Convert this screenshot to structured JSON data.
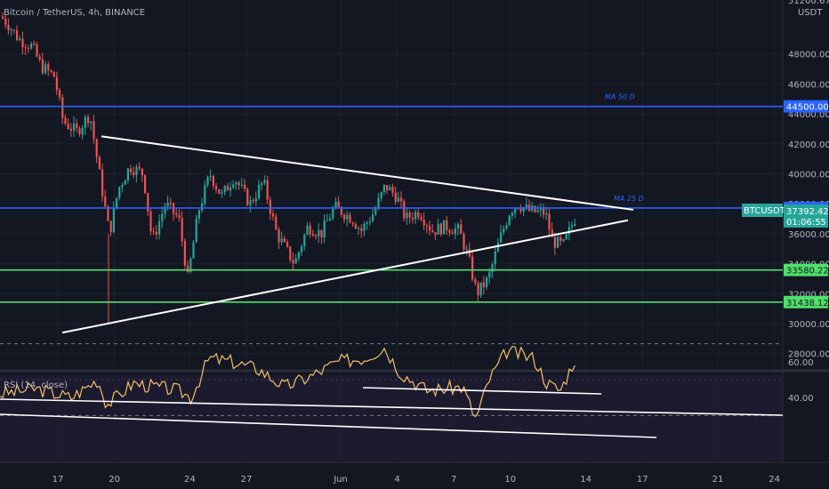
{
  "header": {
    "symbol_line": "Bitcoin / TetherUS, 4h, BINANCE",
    "currency": "USDT",
    "top_label": "51200.67"
  },
  "rsi": {
    "legend": "RSI (14, close)",
    "ticks": [
      "60.00",
      "40.00"
    ]
  },
  "chart_data": {
    "type": "candlestick",
    "x_axis_ticks": [
      "17",
      "20",
      "24",
      "27",
      "Jun",
      "4",
      "7",
      "10",
      "14",
      "17",
      "21",
      "24"
    ],
    "y_axis_ticks": [
      "48000.00",
      "46000.00",
      "44000.00",
      "42000.00",
      "40000.00",
      "38000.00",
      "36000.00",
      "34000.00",
      "32000.00",
      "30000.00",
      "28000.00"
    ],
    "ylim": [
      27000,
      51500
    ],
    "horizontal_lines": [
      {
        "label": "MA 50 D",
        "value": 44500.0,
        "tag": "44500.00",
        "color": "#2962ff"
      },
      {
        "label": "MA 25 D",
        "value": 37719.64,
        "tag": "37719.64",
        "color": "#2962ff"
      },
      {
        "label": "",
        "value": 33580.22,
        "tag": "33580.22",
        "color": "#4ee06a"
      },
      {
        "label": "",
        "value": 31438.12,
        "tag": "31438.12",
        "color": "#4ee06a"
      }
    ],
    "current_price": {
      "symbol": "BTCUSDT",
      "price": "37392.42",
      "countdown": "01:06:55",
      "color": "#26a69a"
    },
    "trendlines": [
      {
        "name": "upper",
        "from": [
          "May 18",
          42500
        ],
        "to": [
          "Jun 16",
          37600
        ]
      },
      {
        "name": "lower",
        "from": [
          "May 17",
          29400
        ],
        "to": [
          "Jun 16",
          36900
        ]
      }
    ],
    "rsi_trendlines": [
      {
        "from": [
          0,
          62
        ],
        "to": [
          1,
          52
        ]
      },
      {
        "from": [
          0,
          52
        ],
        "to": [
          1,
          37
        ]
      },
      {
        "from": [
          0.44,
          70
        ],
        "to": [
          0.72,
          66
        ]
      },
      {
        "from": [
          0.35,
          60
        ],
        "to": [
          0.95,
          50
        ]
      }
    ]
  },
  "colors": {
    "background": "#131722",
    "up": "#26a69a",
    "down": "#ef5350",
    "accent_blue": "#2962ff",
    "support_green": "#4ee06a",
    "rsi_line": "#f5c16c"
  }
}
